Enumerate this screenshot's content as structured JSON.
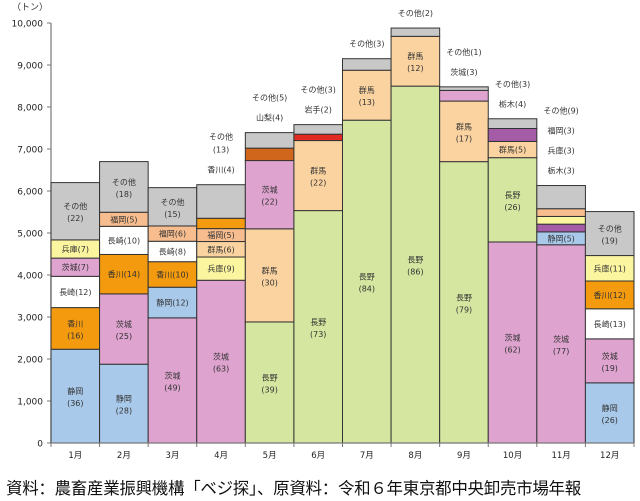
{
  "chart_data": {
    "type": "bar",
    "stacked": true,
    "unit_label": "（トン）",
    "ylim": [
      0,
      10000
    ],
    "yticks": [
      0,
      1000,
      2000,
      3000,
      4000,
      5000,
      6000,
      7000,
      8000,
      9000,
      10000
    ],
    "ytick_labels": [
      "0",
      "1,000",
      "2,000",
      "3,000",
      "4,000",
      "5,000",
      "6,000",
      "7,000",
      "8,000",
      "9,000",
      "10,000"
    ],
    "categories": [
      "1月",
      "2月",
      "3月",
      "4月",
      "5月",
      "6月",
      "7月",
      "8月",
      "9月",
      "10月",
      "11月",
      "12月"
    ],
    "colors": {
      "静岡": "#a9c9ea",
      "香川": "#f39a0e",
      "長崎": "#ffffff",
      "茨城": "#dea3cf",
      "兵庫": "#fbf5a0",
      "その他": "#c8c8c8",
      "福岡": "#f7bd8f",
      "群馬": "#fad3a0",
      "長野": "#d5e6a0",
      "山梨": "#d0661c",
      "岩手": "#e12a22",
      "栃木": "#a45ca6"
    },
    "months": [
      {
        "total": 6200,
        "segments": [
          {
            "name": "静岡",
            "share": 36,
            "label": "inside2"
          },
          {
            "name": "香川",
            "share": 16,
            "label": "inside2"
          },
          {
            "name": "長崎",
            "share": 12,
            "label": "inside"
          },
          {
            "name": "茨城",
            "share": 7,
            "label": "inside"
          },
          {
            "name": "兵庫",
            "share": 7,
            "label": "inside"
          },
          {
            "name": "その他",
            "share": 22,
            "label": "inside2"
          }
        ]
      },
      {
        "total": 6700,
        "segments": [
          {
            "name": "静岡",
            "share": 28,
            "label": "inside2"
          },
          {
            "name": "茨城",
            "share": 25,
            "label": "inside2"
          },
          {
            "name": "香川",
            "share": 14,
            "label": "inside"
          },
          {
            "name": "長崎",
            "share": 10,
            "label": "inside"
          },
          {
            "name": "福岡",
            "share": 5,
            "label": "inside"
          },
          {
            "name": "その他",
            "share": 18,
            "label": "inside2"
          }
        ]
      },
      {
        "total": 6080,
        "segments": [
          {
            "name": "茨城",
            "share": 49,
            "label": "inside2"
          },
          {
            "name": "静岡",
            "share": 12,
            "label": "inside"
          },
          {
            "name": "香川",
            "share": 10,
            "label": "inside"
          },
          {
            "name": "長崎",
            "share": 8,
            "label": "inside"
          },
          {
            "name": "福岡",
            "share": 6,
            "label": "inside"
          },
          {
            "name": "その他",
            "share": 15,
            "label": "inside2"
          }
        ]
      },
      {
        "total": 6150,
        "segments": [
          {
            "name": "茨城",
            "share": 63,
            "label": "inside2"
          },
          {
            "name": "兵庫",
            "share": 9,
            "label": "inside"
          },
          {
            "name": "群馬",
            "share": 6,
            "label": "inside"
          },
          {
            "name": "福岡",
            "share": 5,
            "label": "inside"
          },
          {
            "name": "香川",
            "share": 4,
            "label": "above"
          },
          {
            "name": "その他",
            "share": 13,
            "label": "above2"
          }
        ]
      },
      {
        "total": 7390,
        "segments": [
          {
            "name": "長野",
            "share": 39,
            "label": "inside2"
          },
          {
            "name": "群馬",
            "share": 30,
            "label": "inside2"
          },
          {
            "name": "茨城",
            "share": 22,
            "label": "inside2"
          },
          {
            "name": "山梨",
            "share": 4,
            "label": "above"
          },
          {
            "name": "その他",
            "share": 5,
            "label": "above"
          }
        ]
      },
      {
        "total": 7580,
        "segments": [
          {
            "name": "長野",
            "share": 73,
            "label": "inside2"
          },
          {
            "name": "群馬",
            "share": 22,
            "label": "inside2"
          },
          {
            "name": "岩手",
            "share": 2,
            "label": "above"
          },
          {
            "name": "その他",
            "share": 3,
            "label": "above"
          }
        ]
      },
      {
        "total": 9150,
        "segments": [
          {
            "name": "長野",
            "share": 84,
            "label": "inside2"
          },
          {
            "name": "群馬",
            "share": 13,
            "label": "inside2"
          },
          {
            "name": "その他",
            "share": 3,
            "label": "above"
          }
        ]
      },
      {
        "total": 9880,
        "segments": [
          {
            "name": "長野",
            "share": 86,
            "label": "inside2"
          },
          {
            "name": "群馬",
            "share": 12,
            "label": "inside2"
          },
          {
            "name": "その他",
            "share": 2,
            "label": "above"
          }
        ]
      },
      {
        "total": 8480,
        "segments": [
          {
            "name": "長野",
            "share": 79,
            "label": "inside2"
          },
          {
            "name": "群馬",
            "share": 17,
            "label": "inside2"
          },
          {
            "name": "茨城",
            "share": 3,
            "label": "above"
          },
          {
            "name": "その他",
            "share": 1,
            "label": "above"
          }
        ]
      },
      {
        "total": 7720,
        "segments": [
          {
            "name": "茨城",
            "share": 62,
            "label": "inside2"
          },
          {
            "name": "長野",
            "share": 26,
            "label": "inside2"
          },
          {
            "name": "群馬",
            "share": 5,
            "label": "inside"
          },
          {
            "name": "栃木",
            "share": 4,
            "label": "above"
          },
          {
            "name": "その他",
            "share": 3,
            "label": "above"
          }
        ]
      },
      {
        "total": 6130,
        "segments": [
          {
            "name": "茨城",
            "share": 77,
            "label": "inside2"
          },
          {
            "name": "静岡",
            "share": 5,
            "label": "inside"
          },
          {
            "name": "栃木",
            "share": 3,
            "label": "above"
          },
          {
            "name": "兵庫",
            "share": 3,
            "label": "above"
          },
          {
            "name": "福岡",
            "share": 3,
            "label": "above"
          },
          {
            "name": "その他",
            "share": 9,
            "label": "above"
          }
        ]
      },
      {
        "total": 5510,
        "segments": [
          {
            "name": "静岡",
            "share": 26,
            "label": "inside2"
          },
          {
            "name": "茨城",
            "share": 19,
            "label": "inside2"
          },
          {
            "name": "長崎",
            "share": 13,
            "label": "inside"
          },
          {
            "name": "香川",
            "share": 12,
            "label": "inside"
          },
          {
            "name": "兵庫",
            "share": 11,
            "label": "inside"
          },
          {
            "name": "その他",
            "share": 19,
            "label": "inside2"
          }
        ]
      }
    ]
  },
  "caption": "資料：農畜産業振興機構「ベジ探」、原資料：令和６年東京都中央卸売市場年報"
}
